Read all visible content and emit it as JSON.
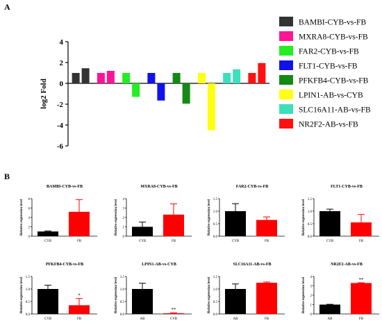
{
  "panel_labels": [
    "A",
    "B"
  ],
  "chart_data": [
    {
      "type": "bar",
      "panel": "A",
      "ylabel": "log2 Fold",
      "ylim": [
        -6,
        4
      ],
      "yticks": [
        4,
        2,
        0,
        -2,
        -4,
        -6
      ],
      "legend_position": "right",
      "series": [
        {
          "name": "BAMBI-CYB-vs-FB",
          "color": "#333333",
          "values": [
            1.0,
            1.45
          ]
        },
        {
          "name": "MXRA8-CYB-vs-FB",
          "color": "#ff1493",
          "values": [
            1.0,
            1.2
          ]
        },
        {
          "name": "FAR2-CYB-vs-FB",
          "color": "#22ee22",
          "values": [
            1.0,
            -1.3
          ]
        },
        {
          "name": "FLT1-CYB-vs-FB",
          "color": "#1111ee",
          "values": [
            1.0,
            -1.65
          ]
        },
        {
          "name": "PFKFB4-CYB-vs-FB",
          "color": "#138a13",
          "values": [
            1.0,
            -1.95
          ]
        },
        {
          "name": "LPIN1-AB-vs-CYB",
          "color": "#ffff11",
          "values": [
            1.0,
            -4.5
          ]
        },
        {
          "name": "SLC16A11-AB-vs-FB",
          "color": "#3be0bb",
          "values": [
            1.0,
            1.35
          ]
        },
        {
          "name": "NR2F2-AB-vs-FB",
          "color": "#ff1111",
          "values": [
            1.0,
            1.95
          ]
        }
      ]
    },
    {
      "type": "bar",
      "panel": "B",
      "title": "BAMBI-CYB-vs-FB",
      "ylabel": "Relative expression level",
      "categories": [
        "CYB",
        "FB"
      ],
      "values": [
        1.0,
        5.2
      ],
      "errors": [
        0.1,
        2.6
      ],
      "ylim": [
        0,
        8
      ],
      "yticks": [
        "0",
        "2",
        "4",
        "6",
        "8"
      ],
      "significance": [
        "",
        ""
      ]
    },
    {
      "type": "bar",
      "panel": "B",
      "title": "MXRA8-CYB-vs-FB",
      "ylabel": "Relative expression level",
      "categories": [
        "CYB",
        "FB"
      ],
      "values": [
        1.0,
        2.3
      ],
      "errors": [
        0.5,
        1.15
      ],
      "ylim": [
        0,
        4
      ],
      "yticks": [
        "0",
        "1",
        "2",
        "3",
        "4"
      ],
      "significance": [
        "",
        ""
      ]
    },
    {
      "type": "bar",
      "panel": "B",
      "title": "FAR2-CYB-vs-FB",
      "ylabel": "Relative expression level",
      "categories": [
        "CYB",
        "FB"
      ],
      "values": [
        1.0,
        0.65
      ],
      "errors": [
        0.3,
        0.12
      ],
      "ylim": [
        0,
        1.5
      ],
      "yticks": [
        "0.0",
        "0.5",
        "1.0",
        "1.5"
      ],
      "significance": [
        "",
        ""
      ]
    },
    {
      "type": "bar",
      "panel": "B",
      "title": "FLT1-CYB-vs-FB",
      "ylabel": "Relative expression level",
      "categories": [
        "CYB",
        "FB"
      ],
      "values": [
        1.0,
        0.55
      ],
      "errors": [
        0.08,
        0.32
      ],
      "ylim": [
        0,
        1.5
      ],
      "yticks": [
        "0.0",
        "0.5",
        "1.0",
        "1.5"
      ],
      "significance": [
        "",
        ""
      ]
    },
    {
      "type": "bar",
      "panel": "B",
      "title": "PFKFB4-CYB-vs-FB",
      "ylabel": "Relative expression level",
      "categories": [
        "CYB",
        "FB"
      ],
      "values": [
        1.0,
        0.35
      ],
      "errors": [
        0.15,
        0.27
      ],
      "ylim": [
        0,
        1.5
      ],
      "yticks": [
        "0.0",
        "0.5",
        "1.0",
        "1.5"
      ],
      "significance": [
        "",
        "*"
      ]
    },
    {
      "type": "bar",
      "panel": "B",
      "title": "LPIN1-AB-vs-CYB",
      "ylabel": "Relative expression level",
      "categories": [
        "AB",
        "CYB"
      ],
      "values": [
        1.0,
        0.03
      ],
      "errors": [
        0.23,
        0.02
      ],
      "ylim": [
        0,
        1.5
      ],
      "yticks": [
        "0.0",
        "0.5",
        "1.0",
        "1.5"
      ],
      "significance": [
        "",
        "**"
      ]
    },
    {
      "type": "bar",
      "panel": "B",
      "title": "SLC16A11-AB-vs-FB",
      "ylabel": "Relative expression level",
      "categories": [
        "AB",
        "FB"
      ],
      "values": [
        1.0,
        1.25
      ],
      "errors": [
        0.2,
        0.03
      ],
      "ylim": [
        0,
        1.5
      ],
      "yticks": [
        "0.0",
        "0.5",
        "1.0",
        "1.5"
      ],
      "significance": [
        "",
        ""
      ]
    },
    {
      "type": "bar",
      "panel": "B",
      "title": "NR2F2-AB-vs-FB",
      "ylabel": "Relative expression level",
      "categories": [
        "AB",
        "FB"
      ],
      "values": [
        1.0,
        3.3
      ],
      "errors": [
        0.03,
        0.03
      ],
      "ylim": [
        0,
        4
      ],
      "yticks": [
        "0",
        "1",
        "2",
        "3",
        "4"
      ],
      "significance": [
        "",
        "**"
      ]
    }
  ]
}
